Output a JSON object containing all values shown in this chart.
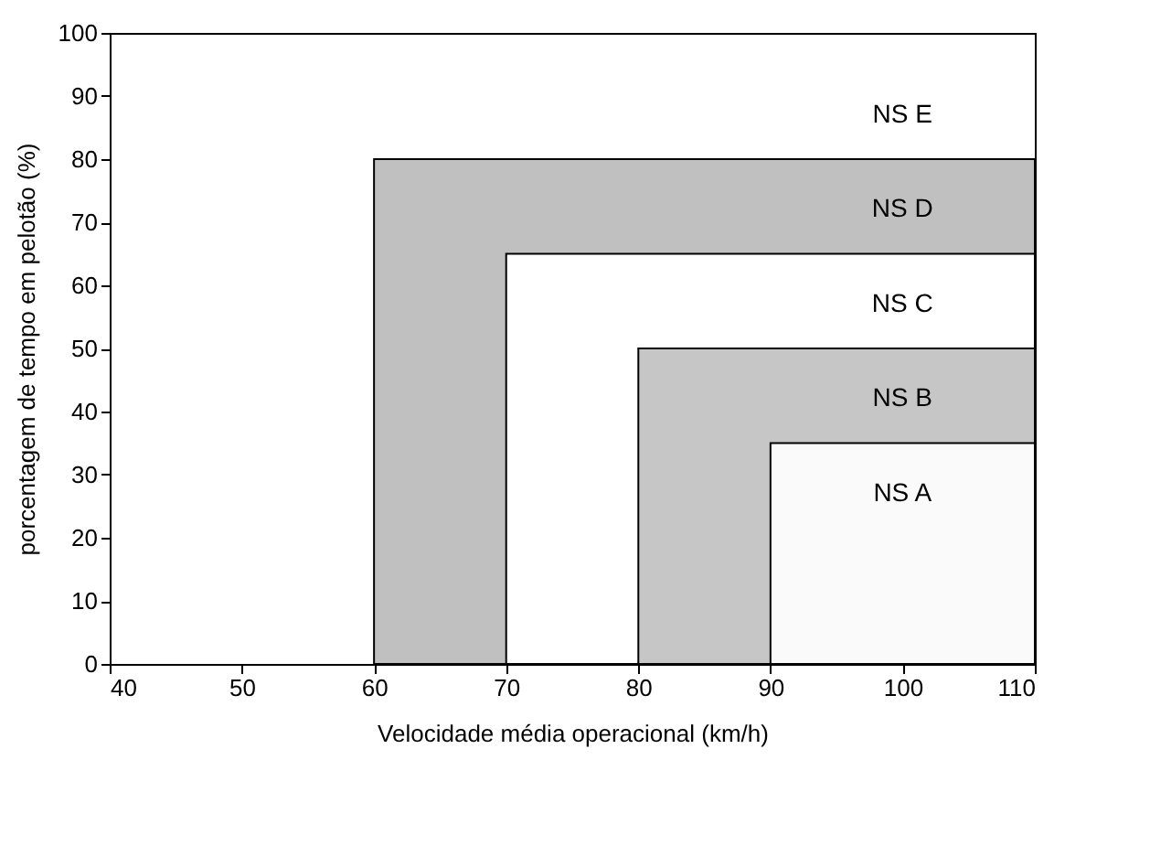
{
  "chart_data": {
    "type": "area",
    "xlabel": "Velocidade média operacional (km/h)",
    "ylabel": "porcentagem de tempo em pelotão (%)",
    "xlim": [
      40,
      110
    ],
    "xticks": [
      40,
      50,
      60,
      70,
      80,
      90,
      100,
      110
    ],
    "ylim": [
      0,
      100
    ],
    "yticks": [
      0,
      10,
      20,
      30,
      40,
      50,
      60,
      70,
      80,
      90,
      100
    ],
    "grid": false,
    "series": [
      {
        "color": "#c0c0c0",
        "x": [
          60,
          110
        ],
        "values": [
          80,
          80
        ]
      },
      {
        "color": "#ffffff",
        "x": [
          70,
          110
        ],
        "values": [
          65,
          65
        ]
      },
      {
        "color": "#c6c6c6",
        "x": [
          80,
          110
        ],
        "values": [
          50,
          50
        ]
      },
      {
        "color": "#fafafa",
        "x": [
          90,
          110
        ],
        "values": [
          35,
          35
        ]
      }
    ],
    "annotations": [
      "NS E",
      "NS D",
      "NS C",
      "NS B",
      "NS A"
    ]
  }
}
